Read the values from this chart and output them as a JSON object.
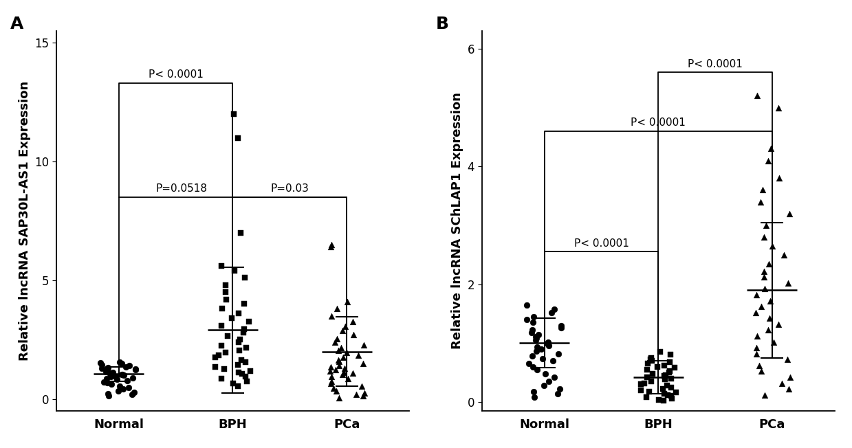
{
  "panel_A": {
    "label": "A",
    "ylabel": "Relative lncRNA SAP30L-AS1 Expression",
    "xlabels": [
      "Normal",
      "BPH",
      "PCa"
    ],
    "ylim": [
      -0.5,
      15.5
    ],
    "yticks": [
      0,
      5,
      10,
      15
    ],
    "Normal": {
      "mean": 1.05,
      "sd": 0.3,
      "marker": "o",
      "points": [
        0.12,
        0.18,
        0.22,
        0.28,
        0.35,
        0.42,
        0.48,
        0.55,
        0.62,
        0.68,
        0.72,
        0.78,
        0.82,
        0.86,
        0.9,
        0.93,
        0.95,
        0.97,
        1.0,
        1.02,
        1.04,
        1.06,
        1.08,
        1.1,
        1.12,
        1.15,
        1.18,
        1.22,
        1.25,
        1.28,
        1.3,
        1.33,
        1.36,
        1.4,
        1.44,
        1.48,
        1.52,
        1.56
      ]
    },
    "BPH": {
      "mean": 2.9,
      "sd": 2.65,
      "marker": "s",
      "points": [
        0.55,
        0.65,
        0.75,
        0.85,
        0.95,
        1.05,
        1.12,
        1.18,
        1.25,
        1.35,
        1.45,
        1.55,
        1.65,
        1.75,
        1.85,
        1.95,
        2.05,
        2.15,
        2.25,
        2.38,
        2.5,
        2.65,
        2.8,
        2.95,
        3.1,
        3.25,
        3.4,
        3.6,
        3.8,
        4.0,
        4.2,
        4.5,
        4.8,
        5.1,
        5.4,
        5.6,
        7.0,
        11.0,
        12.0
      ]
    },
    "PCa": {
      "mean": 2.0,
      "sd": 1.45,
      "marker": "^",
      "points": [
        0.05,
        0.12,
        0.18,
        0.25,
        0.35,
        0.45,
        0.55,
        0.65,
        0.75,
        0.85,
        0.95,
        1.02,
        1.08,
        1.12,
        1.18,
        1.22,
        1.28,
        1.35,
        1.42,
        1.5,
        1.58,
        1.65,
        1.75,
        1.85,
        1.95,
        2.05,
        2.15,
        2.28,
        2.4,
        2.55,
        2.7,
        2.88,
        3.05,
        3.25,
        3.5,
        3.8,
        4.1,
        6.4,
        6.5
      ]
    }
  },
  "panel_B": {
    "label": "B",
    "ylabel": "Relative lncRNA SChLAP1 Expression",
    "xlabels": [
      "Normal",
      "BPH",
      "PCa"
    ],
    "ylim": [
      -0.15,
      6.3
    ],
    "yticks": [
      0,
      2,
      4,
      6
    ],
    "Normal": {
      "mean": 1.0,
      "sd": 0.42,
      "marker": "o",
      "points": [
        0.08,
        0.14,
        0.18,
        0.22,
        0.28,
        0.35,
        0.42,
        0.48,
        0.55,
        0.6,
        0.65,
        0.7,
        0.74,
        0.78,
        0.82,
        0.86,
        0.9,
        0.93,
        0.96,
        0.99,
        1.02,
        1.05,
        1.08,
        1.11,
        1.14,
        1.18,
        1.22,
        1.26,
        1.3,
        1.35,
        1.4,
        1.45,
        1.52,
        1.58,
        1.65
      ]
    },
    "BPH": {
      "mean": 0.42,
      "sd": 0.28,
      "marker": "s",
      "points": [
        0.02,
        0.04,
        0.06,
        0.08,
        0.1,
        0.12,
        0.14,
        0.16,
        0.18,
        0.2,
        0.22,
        0.25,
        0.28,
        0.3,
        0.32,
        0.35,
        0.38,
        0.4,
        0.42,
        0.44,
        0.46,
        0.48,
        0.5,
        0.52,
        0.55,
        0.58,
        0.6,
        0.62,
        0.65,
        0.68,
        0.7,
        0.72,
        0.75,
        0.8,
        0.85
      ]
    },
    "PCa": {
      "mean": 1.9,
      "sd": 1.15,
      "marker": "^",
      "points": [
        0.12,
        0.22,
        0.32,
        0.42,
        0.52,
        0.62,
        0.72,
        0.82,
        0.92,
        1.02,
        1.12,
        1.22,
        1.32,
        1.42,
        1.52,
        1.62,
        1.72,
        1.82,
        1.92,
        2.02,
        2.12,
        2.22,
        2.35,
        2.5,
        2.65,
        2.8,
        3.0,
        3.2,
        3.4,
        3.6,
        3.8,
        4.1,
        4.3,
        5.0,
        5.2
      ]
    }
  },
  "marker_size": 40,
  "marker_color": "black",
  "tick_font_size": 12,
  "label_font_size": 12,
  "bracket_font_size": 11,
  "axis_label_fontsize": 13
}
